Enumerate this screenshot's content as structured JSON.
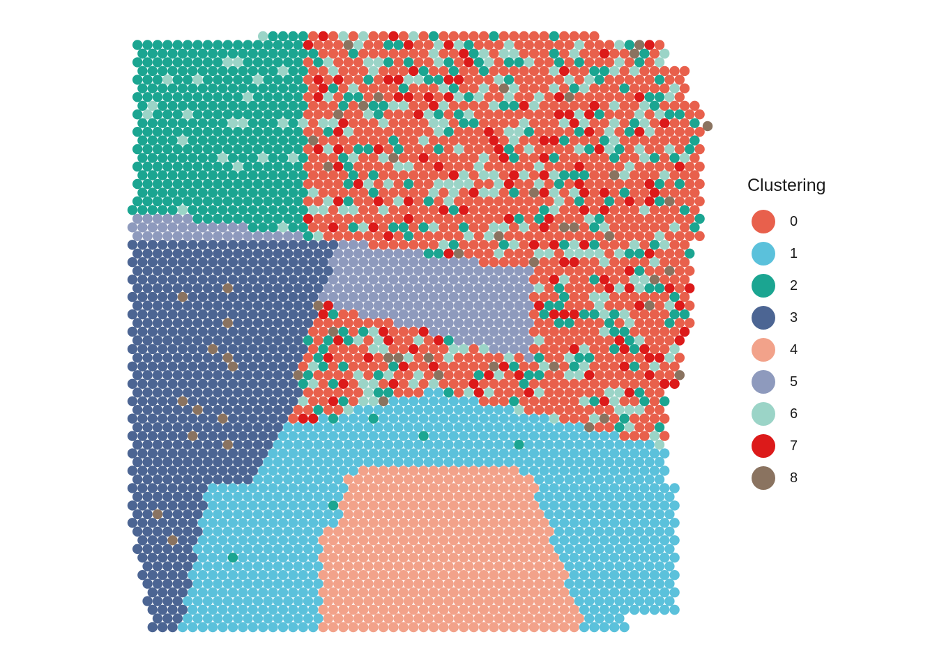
{
  "chart_data": {
    "type": "scatter",
    "title": "",
    "xlabel": "",
    "ylabel": "",
    "grid": false,
    "legend_position": "right",
    "legend": {
      "title": "Clustering",
      "entries": [
        {
          "label": "0",
          "color": "#E8604C"
        },
        {
          "label": "1",
          "color": "#5BC1DB"
        },
        {
          "label": "2",
          "color": "#1BA591"
        },
        {
          "label": "3",
          "color": "#4C6593"
        },
        {
          "label": "4",
          "color": "#F2A28A"
        },
        {
          "label": "5",
          "color": "#8E9ABD"
        },
        {
          "label": "6",
          "color": "#9BD4C7"
        },
        {
          "label": "7",
          "color": "#DC1A1A"
        },
        {
          "label": "8",
          "color": "#8A7360"
        }
      ]
    },
    "description": "Spatial spot plot: hexagonal grid of spots colored by cluster. Cluster 2 top-left, 0/6/7 mixed in top-right, 5 band in middle, 3 on left, 1 across bottom, 4 patch bottom-center, 8 scattered."
  }
}
